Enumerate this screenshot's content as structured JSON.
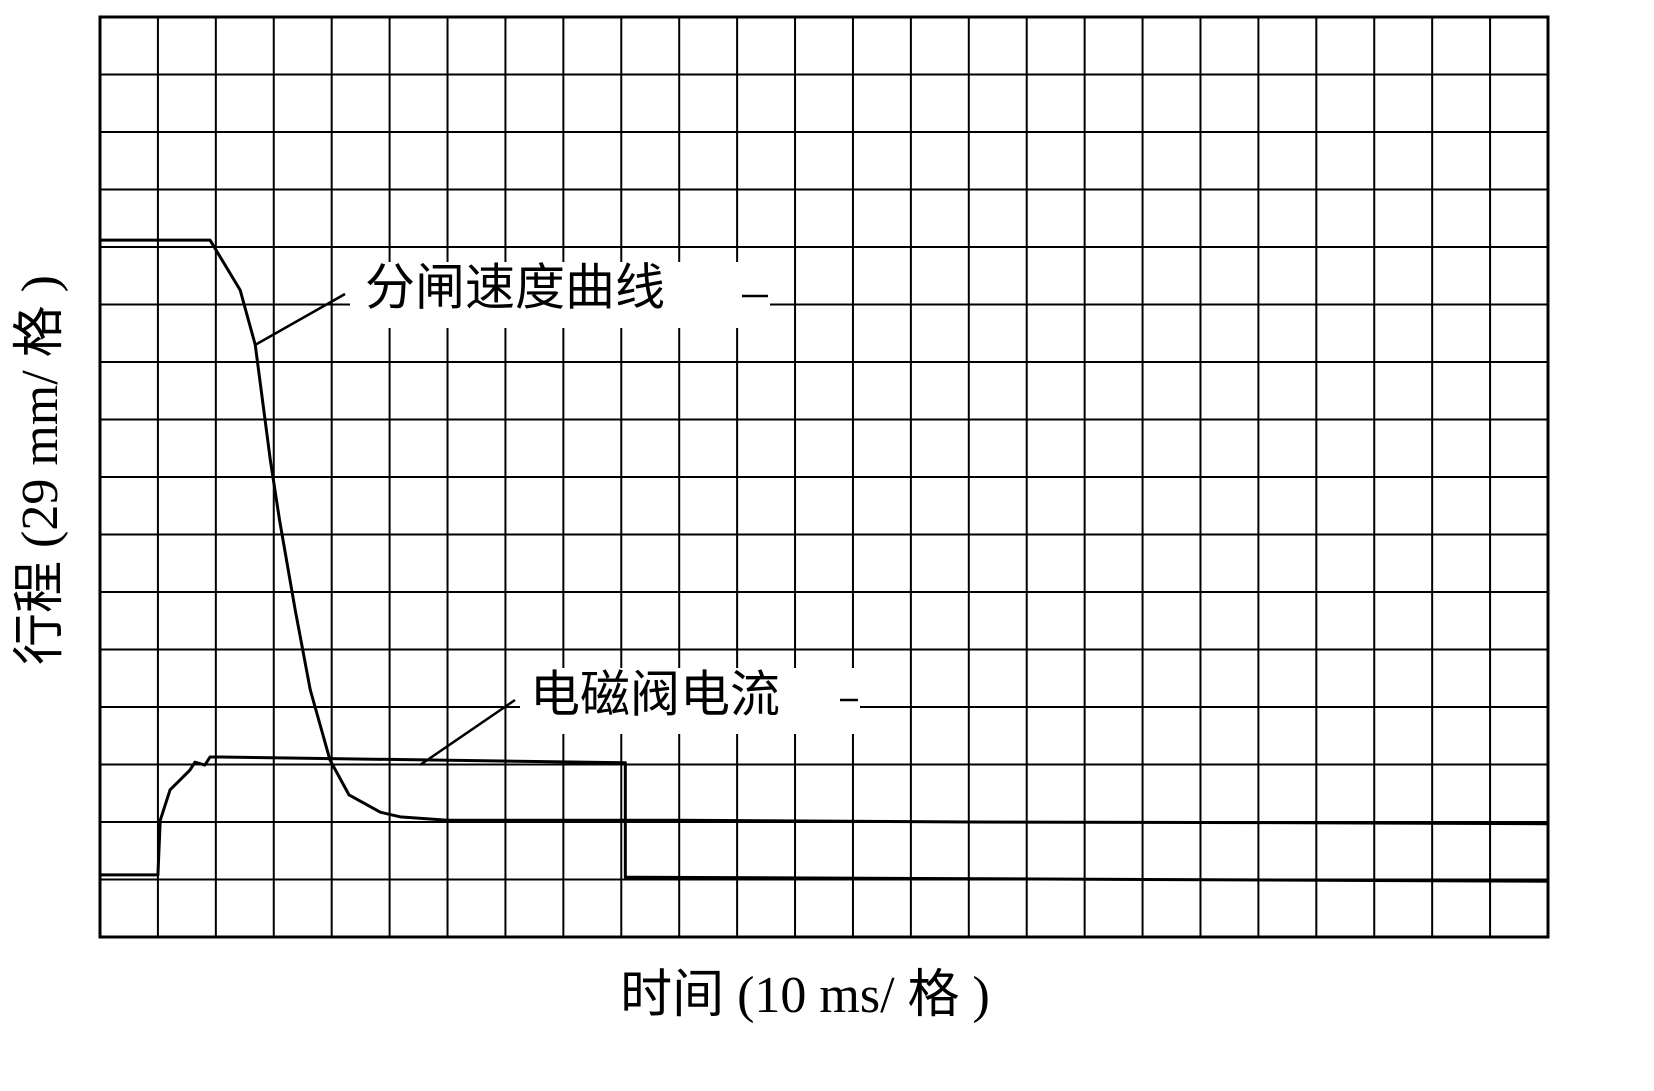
{
  "chart_data": {
    "type": "line",
    "xlabel": "时间 (10 ms/ 格 )",
    "ylabel": "行程 (29 mm/ 格 )",
    "xlim": [
      0,
      25
    ],
    "ylim": [
      0,
      16
    ],
    "xticks": [
      0,
      1,
      2,
      3,
      4,
      5,
      6,
      7,
      8,
      9,
      10,
      11,
      12,
      13,
      14,
      15,
      16,
      17,
      18,
      19,
      20,
      21,
      22,
      23,
      24,
      25
    ],
    "yticks": [
      0,
      1,
      2,
      3,
      4,
      5,
      6,
      7,
      8,
      9,
      10,
      11,
      12,
      13,
      14,
      15,
      16
    ],
    "grid": true,
    "series": [
      {
        "name": "分闸速度曲线",
        "color": "#000000",
        "x": [
          0,
          1.9,
          2.42,
          2.68,
          2.94,
          3.1,
          3.37,
          3.63,
          3.97,
          4.3,
          4.84,
          5.18,
          6,
          10,
          15,
          20,
          25
        ],
        "values": [
          12.12,
          12.12,
          11.25,
          10.3,
          8.3,
          7.25,
          5.69,
          4.3,
          3.08,
          2.47,
          2.17,
          2.09,
          2.03,
          2.03,
          2.0,
          1.99,
          1.97
        ]
      },
      {
        "name": "电磁阀电流",
        "color": "#000000",
        "x": [
          0,
          1.0,
          1.04,
          1.21,
          1.38,
          1.55,
          1.64,
          1.81,
          1.9,
          2.07,
          9.07,
          9.07,
          25
        ],
        "values": [
          1.08,
          1.08,
          2.03,
          2.56,
          2.73,
          2.9,
          3.04,
          2.99,
          3.13,
          3.13,
          3.03,
          1.04,
          0.97
        ]
      }
    ]
  }
}
